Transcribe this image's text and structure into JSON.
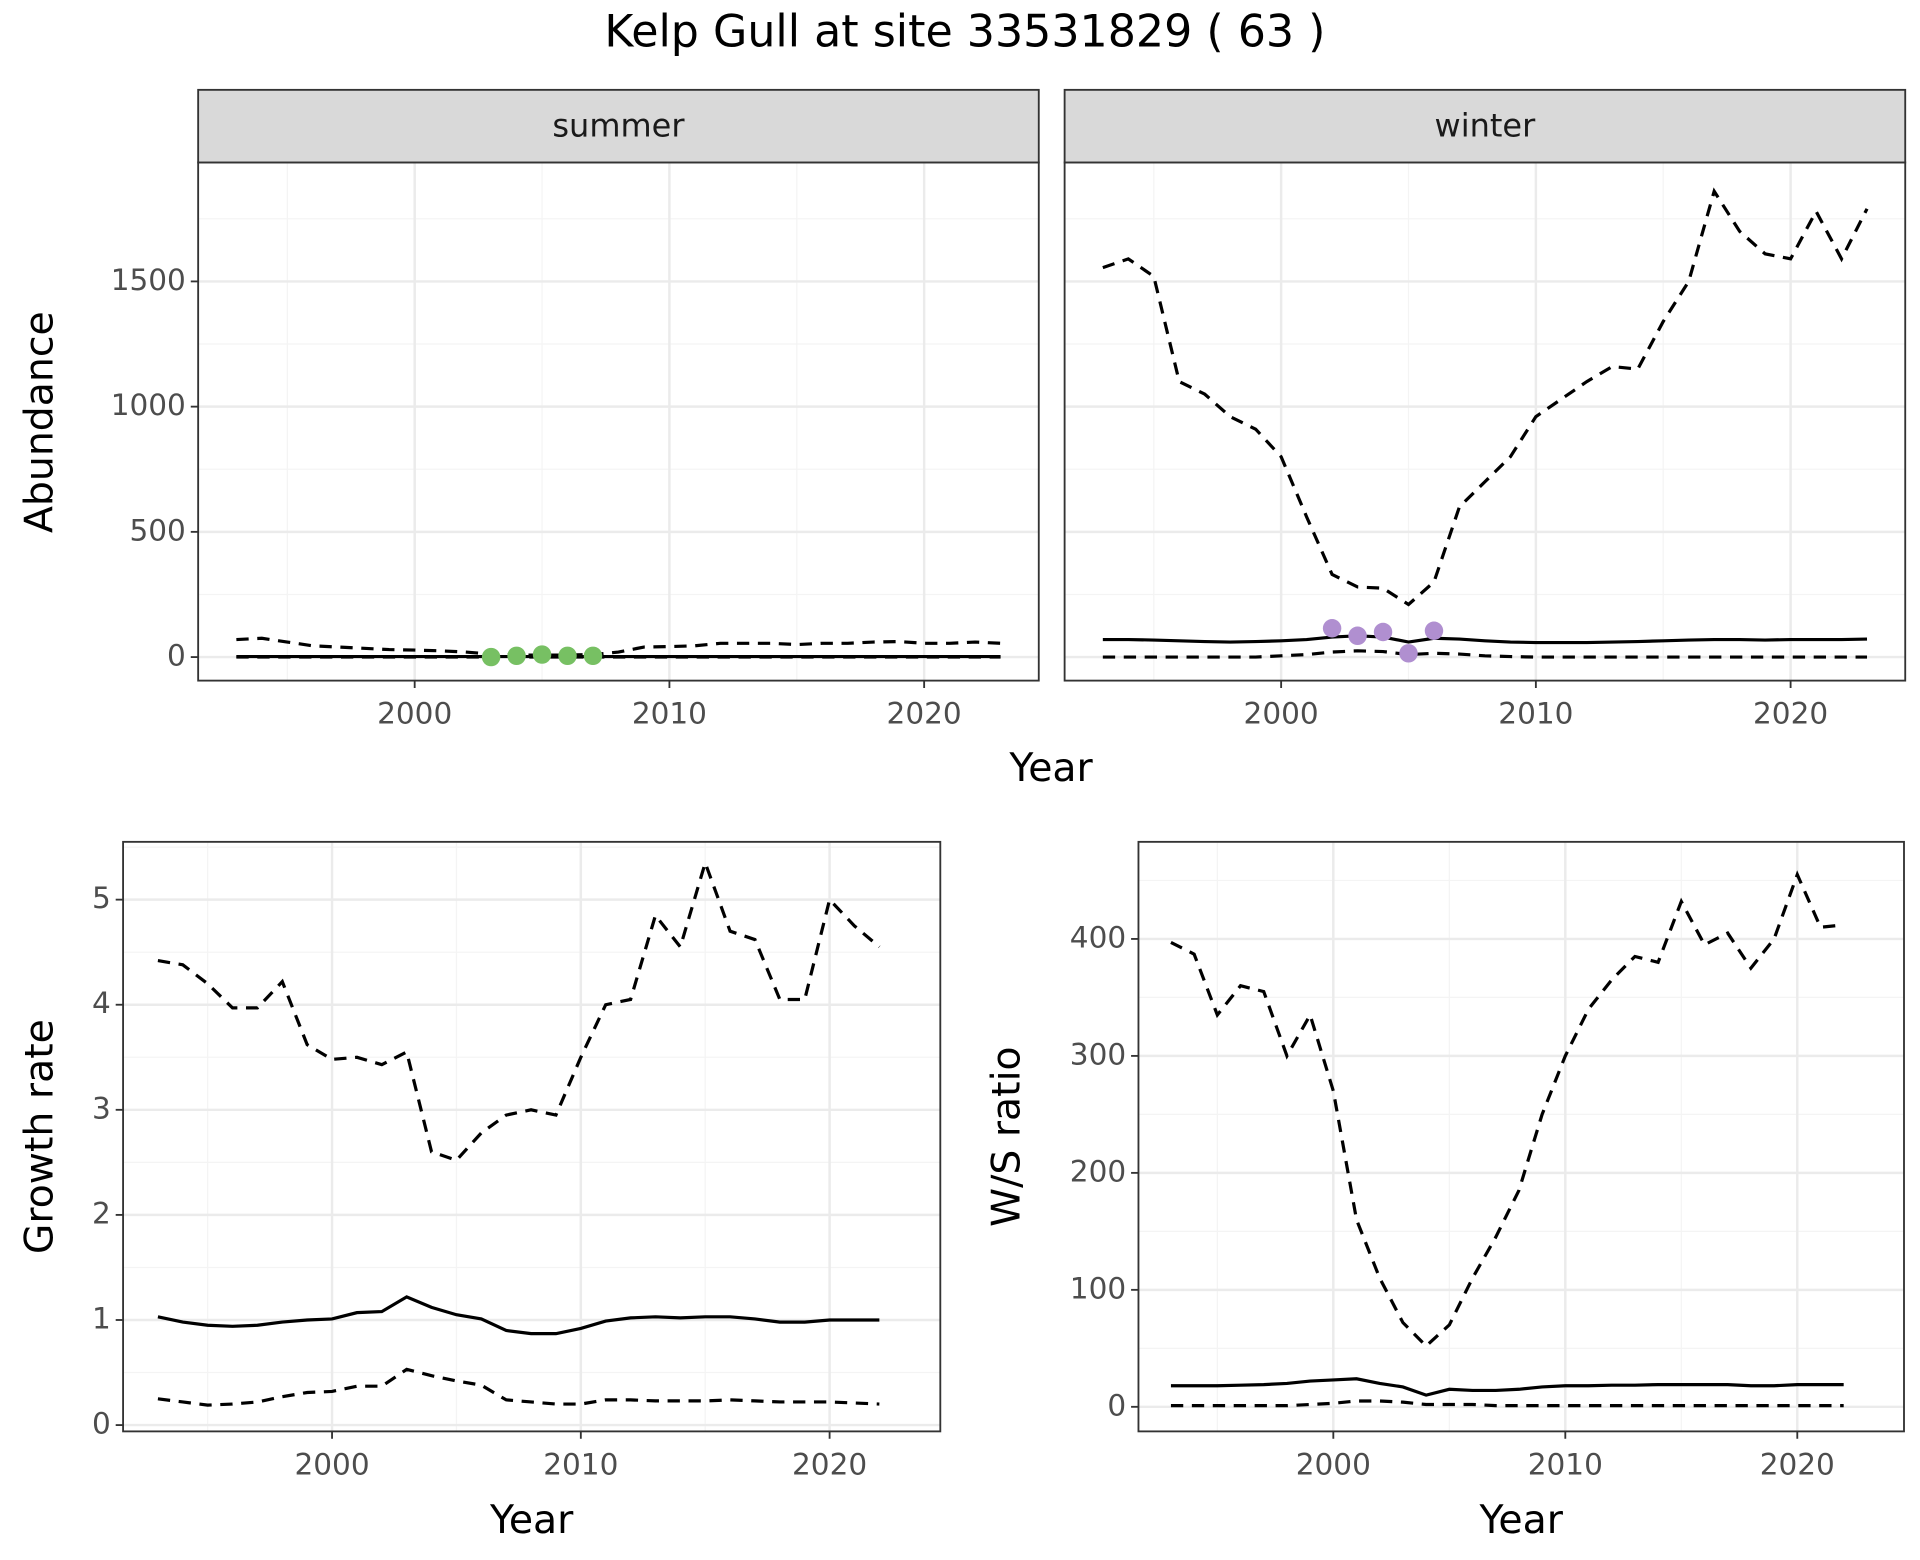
{
  "title": "Kelp Gull at site 33531829 ( 63 )",
  "facet_x_label": "Year",
  "facet_y_label": "Abundance",
  "chart_data": [
    {
      "type": "line",
      "title": "summer",
      "x": [
        1993,
        1994,
        1995,
        1996,
        1997,
        1998,
        1999,
        2000,
        2001,
        2002,
        2003,
        2004,
        2005,
        2006,
        2007,
        2008,
        2009,
        2010,
        2011,
        2012,
        2013,
        2014,
        2015,
        2016,
        2017,
        2018,
        2019,
        2020,
        2021,
        2022,
        2023
      ],
      "series": [
        {
          "color": "#000000",
          "dash": "dashed",
          "values": [
            70,
            75,
            60,
            45,
            40,
            35,
            30,
            28,
            25,
            20,
            12,
            8,
            8,
            8,
            10,
            20,
            40,
            42,
            45,
            55,
            55,
            55,
            50,
            55,
            55,
            60,
            62,
            55,
            55,
            60,
            55
          ]
        },
        {
          "color": "#000000",
          "dash": "solid",
          "values": [
            2,
            2,
            2,
            2,
            2,
            2,
            2,
            2,
            2,
            2,
            2,
            2,
            2,
            2,
            2,
            2,
            2,
            2,
            2,
            2,
            2,
            2,
            2,
            2,
            2,
            2,
            2,
            2,
            2,
            2,
            2
          ]
        },
        {
          "color": "#000000",
          "dash": "dashed",
          "values": [
            0,
            0,
            0,
            0,
            0,
            0,
            0,
            0,
            0,
            0,
            0,
            0,
            0,
            0,
            0,
            0,
            0,
            0,
            0,
            0,
            0,
            0,
            0,
            0,
            0,
            0,
            0,
            0,
            0,
            0,
            0
          ]
        }
      ],
      "points": {
        "color": "#77c063",
        "x": [
          2003,
          2004,
          2005,
          2006,
          2007
        ],
        "values": [
          0,
          5,
          10,
          5,
          5
        ]
      },
      "xlim": [
        1991.5,
        2024.5
      ],
      "ylim": [
        -94,
        1975
      ],
      "xticks": [
        2000,
        2010,
        2020
      ],
      "x_minor_ticks": [
        1995,
        2005,
        2015
      ],
      "yticks": [
        0,
        500,
        1000,
        1500
      ],
      "y_minor_ticks": [
        250,
        750,
        1250,
        1750
      ],
      "grid": true,
      "y_tick_labels": true
    },
    {
      "type": "line",
      "title": "winter",
      "x": [
        1993,
        1994,
        1995,
        1996,
        1997,
        1998,
        1999,
        2000,
        2001,
        2002,
        2003,
        2004,
        2005,
        2006,
        2007,
        2008,
        2009,
        2010,
        2011,
        2012,
        2013,
        2014,
        2015,
        2016,
        2017,
        2018,
        2019,
        2020,
        2021,
        2022,
        2023
      ],
      "series": [
        {
          "color": "#000000",
          "dash": "dashed",
          "values": [
            1555,
            1590,
            1520,
            1100,
            1050,
            960,
            910,
            800,
            560,
            330,
            280,
            275,
            210,
            300,
            600,
            700,
            800,
            960,
            1030,
            1100,
            1160,
            1150,
            1340,
            1500,
            1860,
            1700,
            1610,
            1590,
            1780,
            1590,
            1790
          ]
        },
        {
          "color": "#000000",
          "dash": "solid",
          "values": [
            70,
            70,
            68,
            65,
            62,
            60,
            62,
            65,
            70,
            80,
            85,
            80,
            60,
            75,
            72,
            65,
            60,
            58,
            58,
            58,
            60,
            62,
            65,
            68,
            70,
            70,
            68,
            70,
            70,
            70,
            72
          ]
        },
        {
          "color": "#000000",
          "dash": "dashed",
          "values": [
            0,
            0,
            0,
            0,
            0,
            0,
            0,
            5,
            10,
            20,
            25,
            22,
            10,
            15,
            12,
            5,
            2,
            0,
            0,
            0,
            0,
            0,
            0,
            0,
            0,
            0,
            0,
            0,
            0,
            0,
            0
          ]
        }
      ],
      "points": {
        "color": "#b08fd0",
        "x": [
          2002,
          2003,
          2004,
          2005,
          2006
        ],
        "values": [
          115,
          85,
          100,
          15,
          105
        ]
      },
      "xlim": [
        1991.5,
        2024.5
      ],
      "ylim": [
        -94,
        1975
      ],
      "xticks": [
        2000,
        2010,
        2020
      ],
      "x_minor_ticks": [
        1995,
        2005,
        2015
      ],
      "yticks": [
        0,
        500,
        1000,
        1500
      ],
      "y_minor_ticks": [
        250,
        750,
        1250,
        1750
      ],
      "grid": true,
      "y_tick_labels": false
    },
    {
      "type": "line",
      "x_label": "Year",
      "y_label": "Growth rate",
      "x": [
        1993,
        1994,
        1995,
        1996,
        1997,
        1998,
        1999,
        2000,
        2001,
        2002,
        2003,
        2004,
        2005,
        2006,
        2007,
        2008,
        2009,
        2010,
        2011,
        2012,
        2013,
        2014,
        2015,
        2016,
        2017,
        2018,
        2019,
        2020,
        2021,
        2022
      ],
      "series": [
        {
          "color": "#000000",
          "dash": "dashed",
          "values": [
            4.42,
            4.38,
            4.2,
            3.97,
            3.97,
            4.22,
            3.62,
            3.48,
            3.5,
            3.43,
            3.55,
            2.6,
            2.52,
            2.78,
            2.95,
            3.0,
            2.95,
            3.5,
            4.0,
            4.05,
            4.85,
            4.55,
            5.35,
            4.7,
            4.62,
            4.05,
            4.05,
            5.0,
            4.75,
            4.55
          ]
        },
        {
          "color": "#000000",
          "dash": "solid",
          "values": [
            1.03,
            0.98,
            0.95,
            0.94,
            0.95,
            0.98,
            1.0,
            1.01,
            1.07,
            1.08,
            1.22,
            1.12,
            1.05,
            1.01,
            0.9,
            0.87,
            0.87,
            0.92,
            0.99,
            1.02,
            1.03,
            1.02,
            1.03,
            1.03,
            1.01,
            0.98,
            0.98,
            1.0,
            1.0,
            1.0
          ]
        },
        {
          "color": "#000000",
          "dash": "dashed",
          "values": [
            0.25,
            0.22,
            0.19,
            0.2,
            0.22,
            0.27,
            0.31,
            0.32,
            0.37,
            0.37,
            0.53,
            0.47,
            0.42,
            0.38,
            0.24,
            0.22,
            0.2,
            0.2,
            0.24,
            0.24,
            0.23,
            0.23,
            0.23,
            0.24,
            0.23,
            0.22,
            0.22,
            0.22,
            0.21,
            0.2
          ]
        }
      ],
      "xlim": [
        1991.6,
        2024.45
      ],
      "ylim": [
        -0.06,
        5.55
      ],
      "xticks": [
        2000,
        2010,
        2020
      ],
      "x_minor_ticks": [
        1995,
        2005,
        2015
      ],
      "yticks": [
        0,
        1,
        2,
        3,
        4,
        5
      ],
      "y_minor_ticks": [
        0.5,
        1.5,
        2.5,
        3.5,
        4.5,
        5.5
      ],
      "grid": true,
      "y_tick_labels": true
    },
    {
      "type": "line",
      "x_label": "Year",
      "y_label": "W/S ratio",
      "x": [
        1993,
        1994,
        1995,
        1996,
        1997,
        1998,
        1999,
        2000,
        2001,
        2002,
        2003,
        2004,
        2005,
        2006,
        2007,
        2008,
        2009,
        2010,
        2011,
        2012,
        2013,
        2014,
        2015,
        2016,
        2017,
        2018,
        2019,
        2020,
        2021,
        2022
      ],
      "series": [
        {
          "color": "#000000",
          "dash": "dashed",
          "values": [
            397,
            387,
            335,
            360,
            355,
            300,
            335,
            270,
            160,
            110,
            72,
            52,
            70,
            110,
            145,
            185,
            250,
            300,
            340,
            365,
            385,
            380,
            432,
            395,
            405,
            375,
            400,
            455,
            410,
            412
          ]
        },
        {
          "color": "#000000",
          "dash": "solid",
          "values": [
            18,
            18,
            18,
            18.5,
            19,
            20,
            22,
            23,
            24,
            20,
            17,
            10,
            15,
            14,
            14,
            15,
            17,
            18,
            18,
            18.5,
            18.5,
            19,
            19,
            19,
            19,
            18,
            18,
            19,
            19,
            19
          ]
        },
        {
          "color": "#000000",
          "dash": "dashed",
          "values": [
            1,
            1,
            1,
            1,
            1,
            1,
            2,
            3,
            5,
            5,
            4,
            2,
            2,
            2,
            1,
            1,
            1,
            1,
            1,
            1,
            1,
            1,
            1,
            1,
            1,
            1,
            1,
            1,
            1,
            1
          ]
        }
      ],
      "xlim": [
        1991.6,
        2024.6
      ],
      "ylim": [
        -21,
        483
      ],
      "xticks": [
        2000,
        2010,
        2020
      ],
      "x_minor_ticks": [
        1995,
        2005,
        2015
      ],
      "yticks": [
        0,
        100,
        200,
        300,
        400
      ],
      "y_minor_ticks": [
        50,
        150,
        250,
        350,
        450
      ],
      "grid": true,
      "y_tick_labels": true
    }
  ]
}
